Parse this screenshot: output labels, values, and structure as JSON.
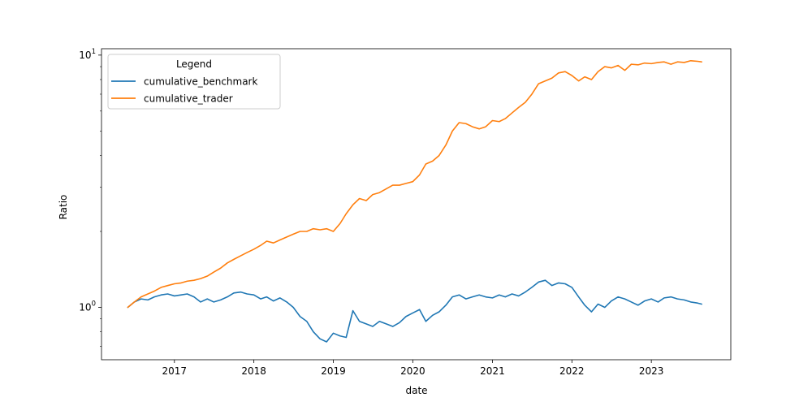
{
  "chart_data": {
    "type": "line",
    "title": "",
    "xlabel": "date",
    "ylabel": "Ratio",
    "x_scale": "time",
    "y_scale": "log",
    "xlim": [
      "2016-02-01",
      "2024-01-01"
    ],
    "ylim": [
      0.62,
      10.6
    ],
    "x_ticks": [
      "2017",
      "2018",
      "2019",
      "2020",
      "2021",
      "2022",
      "2023"
    ],
    "y_ticks": [
      {
        "value": 1,
        "label": "10^0",
        "base": "10",
        "exp": "0"
      },
      {
        "value": 10,
        "label": "10^1",
        "base": "10",
        "exp": "1"
      }
    ],
    "grid": false,
    "legend": {
      "title": "Legend",
      "position": "top-left",
      "entries": [
        "cumulative_benchmark",
        "cumulative_trader"
      ]
    },
    "series": [
      {
        "name": "cumulative_benchmark",
        "color": "#1f77b4",
        "points": [
          [
            "2016-06-01",
            1.0
          ],
          [
            "2016-07-01",
            1.05
          ],
          [
            "2016-08-01",
            1.08
          ],
          [
            "2016-09-01",
            1.07
          ],
          [
            "2016-10-01",
            1.1
          ],
          [
            "2016-11-01",
            1.12
          ],
          [
            "2016-12-01",
            1.13
          ],
          [
            "2017-01-01",
            1.11
          ],
          [
            "2017-02-01",
            1.12
          ],
          [
            "2017-03-01",
            1.13
          ],
          [
            "2017-04-01",
            1.1
          ],
          [
            "2017-05-01",
            1.05
          ],
          [
            "2017-06-01",
            1.08
          ],
          [
            "2017-07-01",
            1.05
          ],
          [
            "2017-08-01",
            1.07
          ],
          [
            "2017-09-01",
            1.1
          ],
          [
            "2017-10-01",
            1.14
          ],
          [
            "2017-11-01",
            1.15
          ],
          [
            "2017-12-01",
            1.13
          ],
          [
            "2018-01-01",
            1.12
          ],
          [
            "2018-02-01",
            1.08
          ],
          [
            "2018-03-01",
            1.1
          ],
          [
            "2018-04-01",
            1.06
          ],
          [
            "2018-05-01",
            1.09
          ],
          [
            "2018-06-01",
            1.05
          ],
          [
            "2018-07-01",
            1.0
          ],
          [
            "2018-08-01",
            0.92
          ],
          [
            "2018-09-01",
            0.88
          ],
          [
            "2018-10-01",
            0.8
          ],
          [
            "2018-11-01",
            0.75
          ],
          [
            "2018-12-01",
            0.73
          ],
          [
            "2019-01-01",
            0.79
          ],
          [
            "2019-02-01",
            0.77
          ],
          [
            "2019-03-01",
            0.76
          ],
          [
            "2019-04-01",
            0.97
          ],
          [
            "2019-05-01",
            0.88
          ],
          [
            "2019-06-01",
            0.86
          ],
          [
            "2019-07-01",
            0.84
          ],
          [
            "2019-08-01",
            0.88
          ],
          [
            "2019-09-01",
            0.86
          ],
          [
            "2019-10-01",
            0.84
          ],
          [
            "2019-11-01",
            0.87
          ],
          [
            "2019-12-01",
            0.92
          ],
          [
            "2020-01-01",
            0.95
          ],
          [
            "2020-02-01",
            0.98
          ],
          [
            "2020-03-01",
            0.88
          ],
          [
            "2020-04-01",
            0.93
          ],
          [
            "2020-05-01",
            0.96
          ],
          [
            "2020-06-01",
            1.02
          ],
          [
            "2020-07-01",
            1.1
          ],
          [
            "2020-08-01",
            1.12
          ],
          [
            "2020-09-01",
            1.08
          ],
          [
            "2020-10-01",
            1.1
          ],
          [
            "2020-11-01",
            1.12
          ],
          [
            "2020-12-01",
            1.1
          ],
          [
            "2021-01-01",
            1.09
          ],
          [
            "2021-02-01",
            1.12
          ],
          [
            "2021-03-01",
            1.1
          ],
          [
            "2021-04-01",
            1.13
          ],
          [
            "2021-05-01",
            1.11
          ],
          [
            "2021-06-01",
            1.15
          ],
          [
            "2021-07-01",
            1.2
          ],
          [
            "2021-08-01",
            1.26
          ],
          [
            "2021-09-01",
            1.28
          ],
          [
            "2021-10-01",
            1.22
          ],
          [
            "2021-11-01",
            1.25
          ],
          [
            "2021-12-01",
            1.24
          ],
          [
            "2022-01-01",
            1.2
          ],
          [
            "2022-02-01",
            1.1
          ],
          [
            "2022-03-01",
            1.02
          ],
          [
            "2022-04-01",
            0.96
          ],
          [
            "2022-05-01",
            1.03
          ],
          [
            "2022-06-01",
            1.0
          ],
          [
            "2022-07-01",
            1.06
          ],
          [
            "2022-08-01",
            1.1
          ],
          [
            "2022-09-01",
            1.08
          ],
          [
            "2022-10-01",
            1.05
          ],
          [
            "2022-11-01",
            1.02
          ],
          [
            "2022-12-01",
            1.06
          ],
          [
            "2023-01-01",
            1.08
          ],
          [
            "2023-02-01",
            1.05
          ],
          [
            "2023-03-01",
            1.09
          ],
          [
            "2023-04-01",
            1.1
          ],
          [
            "2023-05-01",
            1.08
          ],
          [
            "2023-06-01",
            1.07
          ],
          [
            "2023-07-01",
            1.05
          ],
          [
            "2023-08-01",
            1.04
          ],
          [
            "2023-08-20",
            1.03
          ]
        ]
      },
      {
        "name": "cumulative_trader",
        "color": "#ff7f0e",
        "points": [
          [
            "2016-06-01",
            1.0
          ],
          [
            "2016-07-01",
            1.05
          ],
          [
            "2016-08-01",
            1.1
          ],
          [
            "2016-09-01",
            1.13
          ],
          [
            "2016-10-01",
            1.16
          ],
          [
            "2016-11-01",
            1.2
          ],
          [
            "2016-12-01",
            1.22
          ],
          [
            "2017-01-01",
            1.24
          ],
          [
            "2017-02-01",
            1.25
          ],
          [
            "2017-03-01",
            1.27
          ],
          [
            "2017-04-01",
            1.28
          ],
          [
            "2017-05-01",
            1.3
          ],
          [
            "2017-06-01",
            1.33
          ],
          [
            "2017-07-01",
            1.38
          ],
          [
            "2017-08-01",
            1.43
          ],
          [
            "2017-09-01",
            1.5
          ],
          [
            "2017-10-01",
            1.55
          ],
          [
            "2017-11-01",
            1.6
          ],
          [
            "2017-12-01",
            1.65
          ],
          [
            "2018-01-01",
            1.7
          ],
          [
            "2018-02-01",
            1.76
          ],
          [
            "2018-03-01",
            1.83
          ],
          [
            "2018-04-01",
            1.8
          ],
          [
            "2018-05-01",
            1.85
          ],
          [
            "2018-06-01",
            1.9
          ],
          [
            "2018-07-01",
            1.95
          ],
          [
            "2018-08-01",
            2.0
          ],
          [
            "2018-09-01",
            2.0
          ],
          [
            "2018-10-01",
            2.05
          ],
          [
            "2018-11-01",
            2.03
          ],
          [
            "2018-12-01",
            2.05
          ],
          [
            "2019-01-01",
            2.0
          ],
          [
            "2019-02-01",
            2.15
          ],
          [
            "2019-03-01",
            2.35
          ],
          [
            "2019-04-01",
            2.55
          ],
          [
            "2019-05-01",
            2.7
          ],
          [
            "2019-06-01",
            2.65
          ],
          [
            "2019-07-01",
            2.8
          ],
          [
            "2019-08-01",
            2.85
          ],
          [
            "2019-09-01",
            2.95
          ],
          [
            "2019-10-01",
            3.05
          ],
          [
            "2019-11-01",
            3.05
          ],
          [
            "2019-12-01",
            3.1
          ],
          [
            "2020-01-01",
            3.15
          ],
          [
            "2020-02-01",
            3.35
          ],
          [
            "2020-03-01",
            3.7
          ],
          [
            "2020-04-01",
            3.8
          ],
          [
            "2020-05-01",
            4.0
          ],
          [
            "2020-06-01",
            4.4
          ],
          [
            "2020-07-01",
            5.0
          ],
          [
            "2020-08-01",
            5.4
          ],
          [
            "2020-09-01",
            5.35
          ],
          [
            "2020-10-01",
            5.2
          ],
          [
            "2020-11-01",
            5.1
          ],
          [
            "2020-12-01",
            5.2
          ],
          [
            "2021-01-01",
            5.5
          ],
          [
            "2021-02-01",
            5.45
          ],
          [
            "2021-03-01",
            5.6
          ],
          [
            "2021-04-01",
            5.9
          ],
          [
            "2021-05-01",
            6.2
          ],
          [
            "2021-06-01",
            6.5
          ],
          [
            "2021-07-01",
            7.0
          ],
          [
            "2021-08-01",
            7.7
          ],
          [
            "2021-09-01",
            7.9
          ],
          [
            "2021-10-01",
            8.1
          ],
          [
            "2021-11-01",
            8.5
          ],
          [
            "2021-12-01",
            8.6
          ],
          [
            "2022-01-01",
            8.3
          ],
          [
            "2022-02-01",
            7.9
          ],
          [
            "2022-03-01",
            8.2
          ],
          [
            "2022-04-01",
            8.0
          ],
          [
            "2022-05-01",
            8.6
          ],
          [
            "2022-06-01",
            9.0
          ],
          [
            "2022-07-01",
            8.9
          ],
          [
            "2022-08-01",
            9.1
          ],
          [
            "2022-09-01",
            8.7
          ],
          [
            "2022-10-01",
            9.2
          ],
          [
            "2022-11-01",
            9.15
          ],
          [
            "2022-12-01",
            9.3
          ],
          [
            "2023-01-01",
            9.25
          ],
          [
            "2023-02-01",
            9.35
          ],
          [
            "2023-03-01",
            9.4
          ],
          [
            "2023-04-01",
            9.2
          ],
          [
            "2023-05-01",
            9.4
          ],
          [
            "2023-06-01",
            9.35
          ],
          [
            "2023-07-01",
            9.5
          ],
          [
            "2023-08-01",
            9.45
          ],
          [
            "2023-08-20",
            9.4
          ]
        ]
      }
    ]
  }
}
